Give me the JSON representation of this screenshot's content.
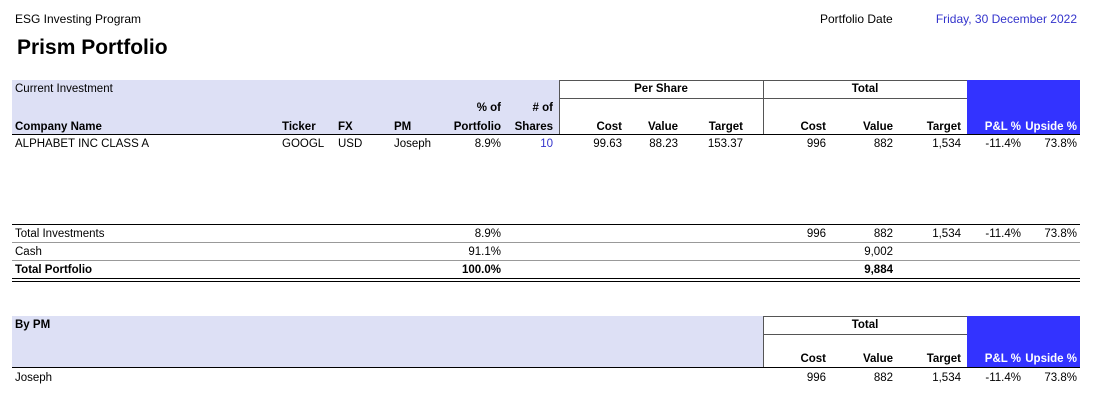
{
  "header": {
    "program": "ESG Investing Program",
    "title": "Prism Portfolio",
    "date_label": "Portfolio Date",
    "date": "Friday, 30 December 2022"
  },
  "investments": {
    "section_label": "Current Investment",
    "group_headers": [
      "Per Share",
      "Total"
    ],
    "columns": [
      "Company Name",
      "Ticker",
      "FX",
      "PM",
      "% of\nPortfolio",
      "# of\nShares",
      "Cost",
      "Value",
      "Target",
      "Cost",
      "Value",
      "Target",
      "P&L %",
      "Upside %"
    ],
    "rows": [
      [
        "ALPHABET INC CLASS A",
        "GOOGL",
        "USD",
        "Joseph",
        "8.9%",
        "10",
        "99.63",
        "88.23",
        "153.37",
        "996",
        "882",
        "1,534",
        "-11.4%",
        "73.8%"
      ]
    ],
    "totals": [
      [
        "Total Investments",
        null,
        null,
        null,
        "8.9%",
        null,
        null,
        null,
        null,
        "996",
        "882",
        "1,534",
        "-11.4%",
        "73.8%"
      ],
      [
        "Cash",
        null,
        null,
        null,
        "91.1%",
        null,
        null,
        null,
        null,
        null,
        "9,002",
        null,
        null,
        null
      ],
      [
        "Total Portfolio",
        null,
        null,
        null,
        "100.0%",
        null,
        null,
        null,
        null,
        null,
        "9,884",
        null,
        null,
        null
      ]
    ]
  },
  "by_pm": {
    "section_label": "By PM",
    "group_header": "Total",
    "columns": [
      "Cost",
      "Value",
      "Target",
      "P&L %",
      "Upside %"
    ],
    "rows": [
      [
        "Joseph",
        "996",
        "882",
        "1,534",
        "-11.4%",
        "73.8%"
      ]
    ]
  }
}
